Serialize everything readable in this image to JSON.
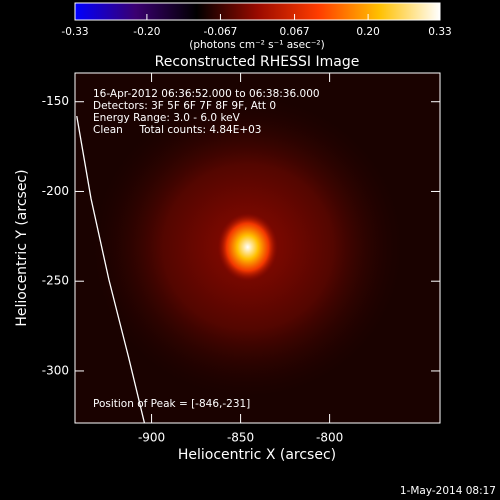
{
  "chart_data": {
    "type": "image",
    "title": "Reconstructed RHESSI Image",
    "x_label": "Heliocentric X (arcsec)",
    "y_label": "Heliocentric Y (arcsec)",
    "xlim": [
      -943,
      -738
    ],
    "ylim": [
      -329,
      -134
    ],
    "xticks": [
      -900,
      -850,
      -800
    ],
    "yticks": [
      -150,
      -200,
      -250,
      -300
    ],
    "colorbar": {
      "label": "(photons cm⁻² s⁻¹ asec⁻²)",
      "lim": [
        -0.33,
        0.33
      ],
      "ticks": [
        -0.33,
        {
          "value": -0.2,
          "label": "-0.20"
        },
        -0.067,
        0.067,
        {
          "value": 0.2,
          "label": "0.20"
        },
        0.33
      ],
      "colormap": [
        "#0000ff",
        "#3a0070",
        "#000000",
        "#9a0a00",
        "#ff3c00",
        "#ffc000",
        "#ffffff"
      ]
    },
    "annotations": [
      "16-Apr-2012 06:36:52.000 to 06:38:36.000",
      "Detectors: 3F 5F 6F 7F 8F 9F, Att 0",
      "Energy Range: 3.0 - 6.0 keV",
      "Clean     Total counts: 4.84E+03"
    ],
    "peak_label": "Position of Peak = [-846,-231]",
    "peak": {
      "x": -846,
      "y": -231,
      "value": 0.33
    },
    "limb": {
      "color": "#ffffff",
      "x": [
        -942,
        -934,
        -924,
        -913,
        -904
      ],
      "y": [
        -158,
        -204,
        -249,
        -292,
        -329
      ]
    },
    "footer": "1-May-2014 08:17"
  }
}
